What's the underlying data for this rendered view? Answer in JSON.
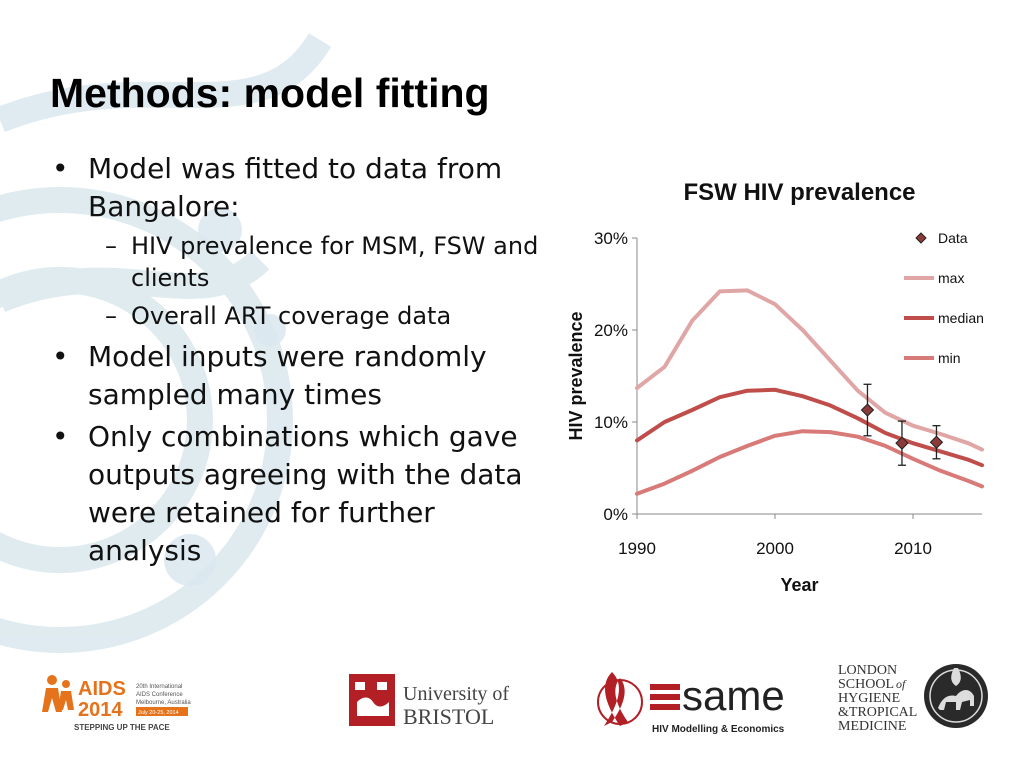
{
  "slide": {
    "title": "Methods: model fitting",
    "bullets": [
      {
        "text": "Model was fitted to data from Bangalore:",
        "sub": [
          "HIV prevalence for MSM, FSW and clients",
          "Overall ART coverage data"
        ]
      },
      {
        "text": "Model inputs were randomly sampled many times",
        "sub": []
      },
      {
        "text": "Only combinations which gave outputs agreeing with the data were retained for further analysis",
        "sub": []
      }
    ]
  },
  "chart_data": {
    "type": "line",
    "title": "FSW HIV prevalence",
    "xlabel": "Year",
    "ylabel": "HIV prevalence",
    "xlim": [
      1990,
      2015
    ],
    "ylim": [
      0,
      0.3
    ],
    "x_ticks": [
      1990,
      2000,
      2010
    ],
    "x_tick_labels": [
      "1990",
      "2000",
      "2010"
    ],
    "y_ticks": [
      0,
      0.1,
      0.2,
      0.3
    ],
    "y_tick_labels": [
      "0%",
      "10%",
      "20%",
      "30%"
    ],
    "grid": false,
    "legend_position": "top-right",
    "x": [
      1990,
      1992,
      1994,
      1996,
      1998,
      2000,
      2002,
      2004,
      2006,
      2008,
      2010,
      2012,
      2014,
      2015
    ],
    "series": [
      {
        "name": "max",
        "color": "#e0a6a6",
        "values": [
          0.137,
          0.16,
          0.21,
          0.242,
          0.243,
          0.228,
          0.2,
          0.167,
          0.134,
          0.11,
          0.096,
          0.087,
          0.077,
          0.07
        ]
      },
      {
        "name": "median",
        "color": "#bf4d4a",
        "values": [
          0.08,
          0.1,
          0.113,
          0.127,
          0.134,
          0.135,
          0.128,
          0.118,
          0.104,
          0.088,
          0.077,
          0.068,
          0.059,
          0.053
        ]
      },
      {
        "name": "min",
        "color": "#d77a78",
        "values": [
          0.022,
          0.033,
          0.047,
          0.062,
          0.074,
          0.085,
          0.09,
          0.089,
          0.084,
          0.074,
          0.06,
          0.047,
          0.036,
          0.03
        ]
      }
    ],
    "data_points": {
      "name": "Data",
      "color": "#8b3a3a",
      "points": [
        {
          "x": 2006.7,
          "y": 0.113,
          "low": 0.085,
          "high": 0.141
        },
        {
          "x": 2009.2,
          "y": 0.077,
          "low": 0.053,
          "high": 0.101
        },
        {
          "x": 2011.7,
          "y": 0.078,
          "low": 0.06,
          "high": 0.096
        }
      ]
    }
  },
  "footer": {
    "aids": {
      "event": "AIDS",
      "year": "2014",
      "conference_line1": "20th International",
      "conference_line2": "AIDS Conference",
      "place": "Melbourne, Australia",
      "dates": "July 20-25, 2014",
      "tagline": "STEPPING UP THE PACE",
      "color": "#e4731c"
    },
    "bristol": {
      "line1": "University of",
      "line2": "BRISTOL",
      "color": "#b21f24"
    },
    "same": {
      "word": "same",
      "caption": "HIV Modelling & Economics",
      "color": "#b21f24"
    },
    "lshtm": {
      "lines": [
        "LONDON",
        "SCHOOL",
        "HYGIENE",
        "&TROPICAL",
        "MEDICINE"
      ],
      "of": "of"
    }
  },
  "theme": {
    "bg_motif": "#dbe8ee"
  }
}
